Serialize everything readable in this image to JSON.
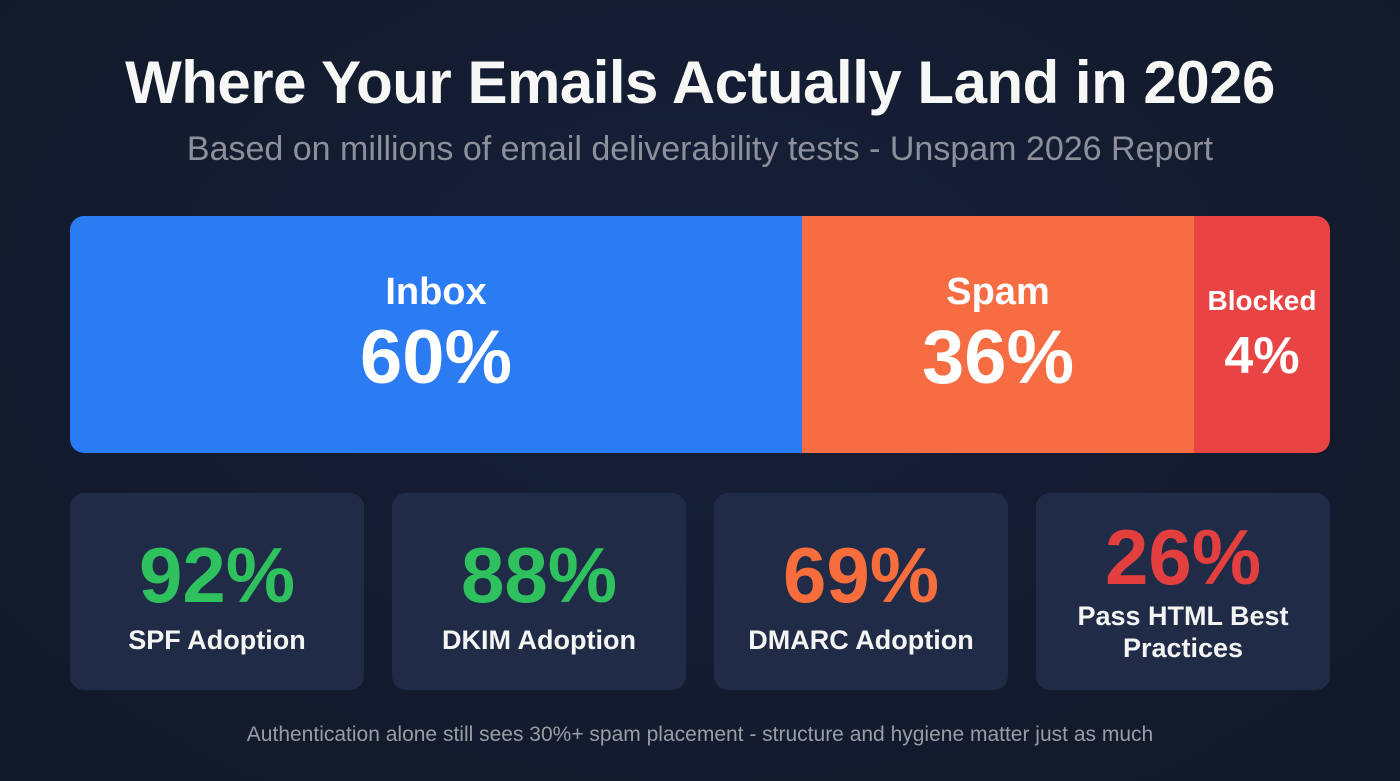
{
  "header": {
    "title": "Where Your Emails Actually Land in 2026",
    "subtitle": "Based on millions of email deliverability tests - Unspam 2026 Report"
  },
  "placement_bar": {
    "segments": [
      {
        "label": "Inbox",
        "value": "60%",
        "percent": 60,
        "color": "#2b7bf2"
      },
      {
        "label": "Spam",
        "value": "36%",
        "percent": 36,
        "color": "#f76d43"
      },
      {
        "label": "Blocked",
        "value": "4%",
        "percent": 4,
        "color": "#e84444"
      }
    ]
  },
  "stat_cards": [
    {
      "value": "92%",
      "caption": "SPF Adoption",
      "color": "#2fc15e"
    },
    {
      "value": "88%",
      "caption": "DKIM Adoption",
      "color": "#2fc15e"
    },
    {
      "value": "69%",
      "caption": "DMARC Adoption",
      "color": "#f76d3c"
    },
    {
      "value": "26%",
      "caption": "Pass HTML Best Practices",
      "color": "#e43f3f"
    }
  ],
  "footer": {
    "note": "Authentication alone still sees 30%+ spam placement - structure and hygiene matter just as much"
  },
  "chart_data": [
    {
      "type": "bar",
      "orientation": "horizontal-stacked",
      "title": "Where Your Emails Actually Land in 2026",
      "subtitle": "Based on millions of email deliverability tests - Unspam 2026 Report",
      "categories": [
        "Inbox",
        "Spam",
        "Blocked"
      ],
      "values": [
        60,
        36,
        4
      ],
      "unit": "%",
      "colors": [
        "#2b7bf2",
        "#f76d43",
        "#e84444"
      ],
      "grid": false,
      "legend": "inline labels"
    },
    {
      "type": "table",
      "title": "Authentication & HTML metrics",
      "categories": [
        "SPF Adoption",
        "DKIM Adoption",
        "DMARC Adoption",
        "Pass HTML Best Practices"
      ],
      "values": [
        92,
        88,
        69,
        26
      ],
      "unit": "%",
      "colors": [
        "#2fc15e",
        "#2fc15e",
        "#f76d3c",
        "#e43f3f"
      ]
    }
  ]
}
